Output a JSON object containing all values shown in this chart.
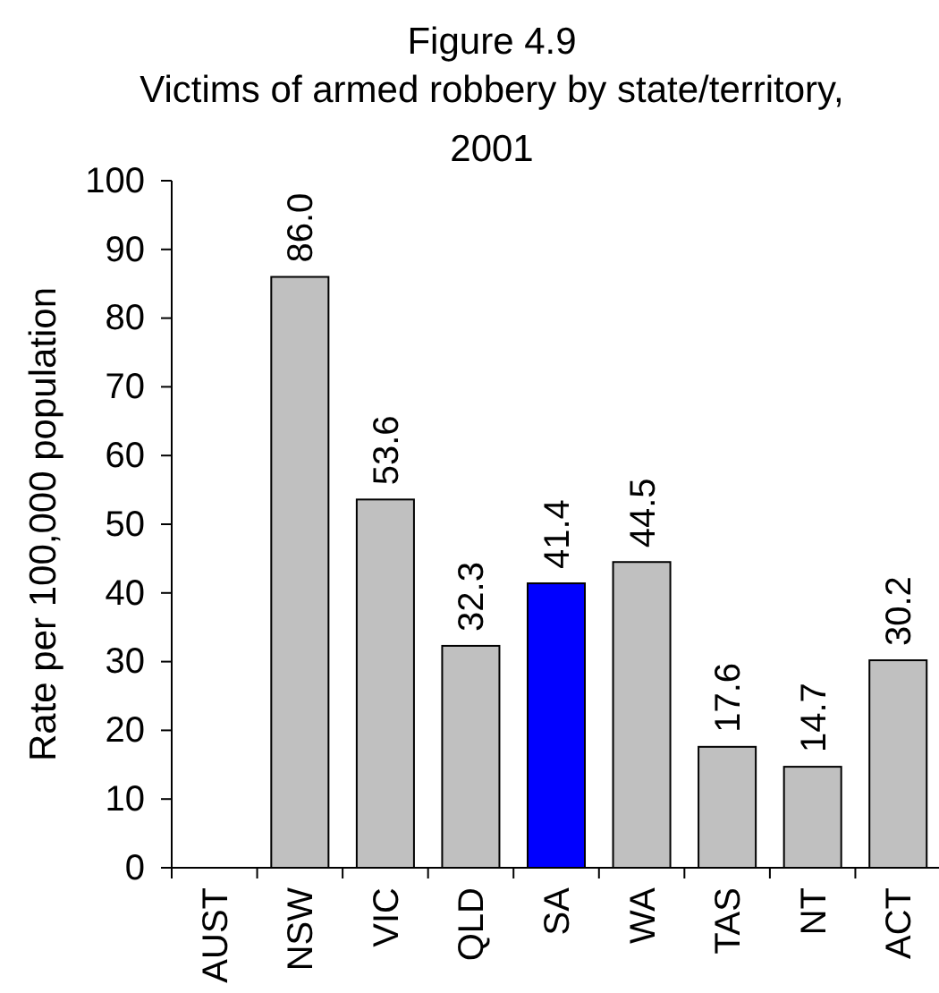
{
  "chart_data": {
    "type": "bar",
    "title": "Figure 4.9",
    "subtitle": "Victims of armed robbery by state/territory, 2001",
    "ylabel": "Rate per 100,000 population",
    "categories": [
      "AUST",
      "NSW",
      "VIC",
      "QLD",
      "SA",
      "WA",
      "TAS",
      "NT",
      "ACT"
    ],
    "values": [
      null,
      86.0,
      53.6,
      32.3,
      41.4,
      44.5,
      17.6,
      14.7,
      30.2
    ],
    "colors": [
      null,
      "#c0c0c0",
      "#c0c0c0",
      "#c0c0c0",
      "#0000ff",
      "#c0c0c0",
      "#c0c0c0",
      "#c0c0c0",
      "#c0c0c0"
    ],
    "value_labels": [
      null,
      "86.0",
      "53.6",
      "32.3",
      "41.4",
      "44.5",
      "17.6",
      "14.7",
      "30.2"
    ],
    "ylim": [
      0,
      100
    ],
    "yticks": [
      0,
      10,
      20,
      30,
      40,
      50,
      60,
      70,
      80,
      90,
      100
    ],
    "grid": false
  }
}
